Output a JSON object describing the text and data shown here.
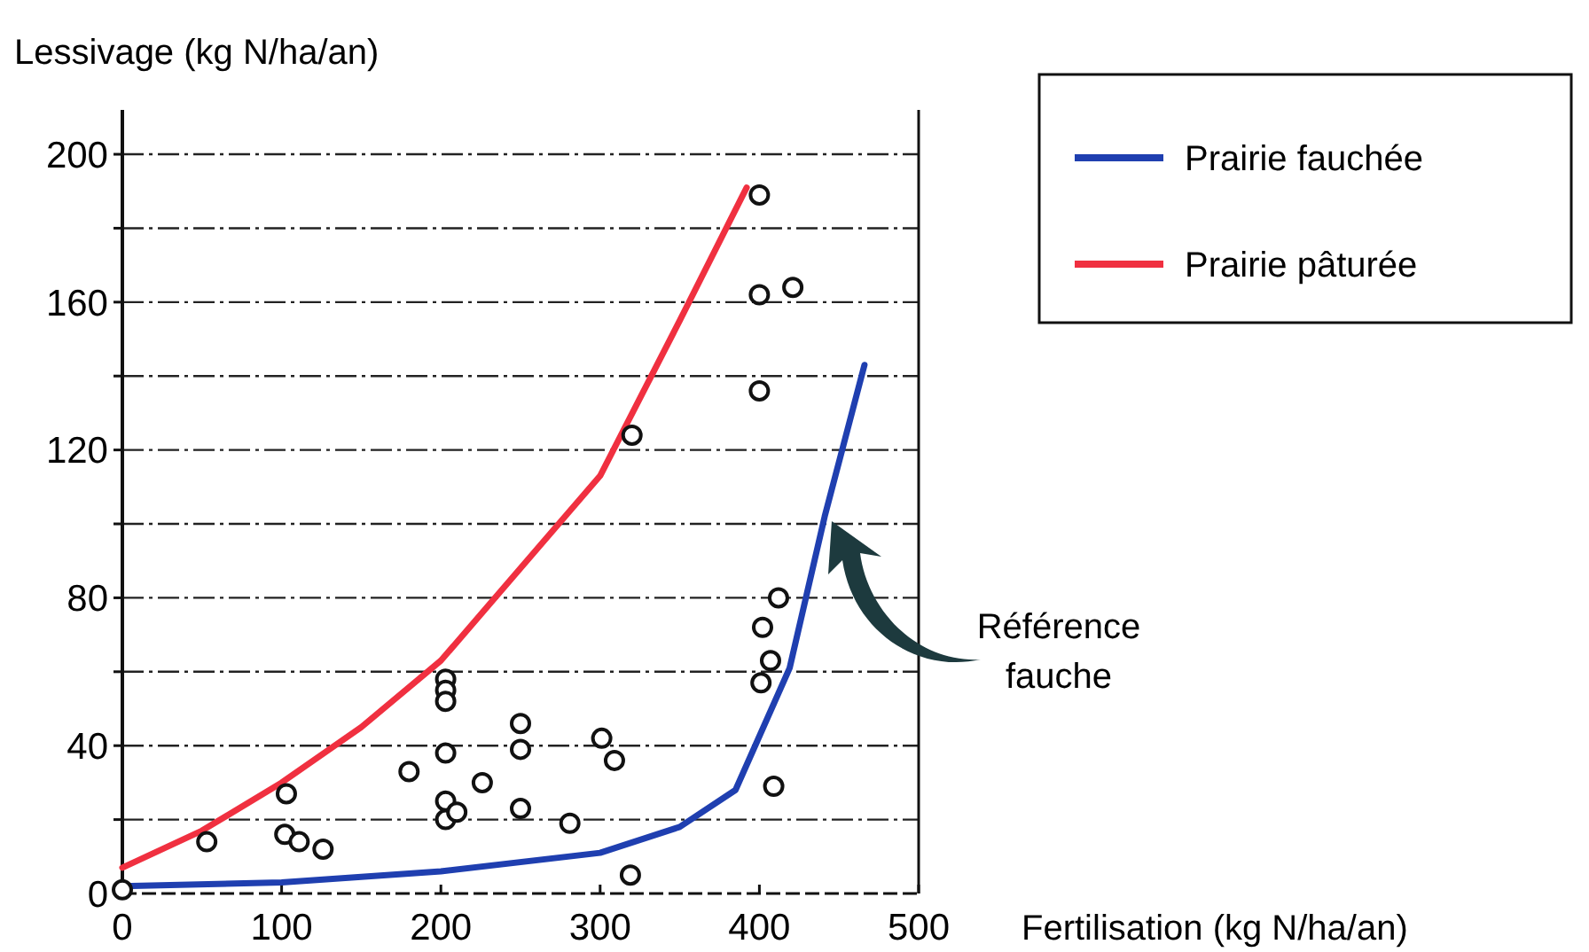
{
  "chart_data": {
    "type": "scatter",
    "xlabel": "Fertilisation (kg N/ha/an)",
    "ylabel": "Lessivage (kg N/ha/an)",
    "xlim": [
      0,
      500
    ],
    "ylim": [
      0,
      212
    ],
    "xticks": [
      0,
      100,
      200,
      300,
      400,
      500
    ],
    "yticks": [
      0,
      {
        "value": 20,
        "label": null
      },
      40,
      {
        "value": 60,
        "label": null
      },
      80,
      {
        "value": 100,
        "label": null
      },
      120,
      {
        "value": 140,
        "label": null
      },
      160,
      {
        "value": 180,
        "label": null
      },
      200
    ],
    "grid": "y",
    "legend": "right",
    "annotations": [
      "Référence fauche"
    ],
    "series": [
      {
        "type": "line",
        "name": "Prairie fauchée",
        "color": "#1f3fb0",
        "marker": "none",
        "x": [
          0,
          100,
          200,
          300,
          350,
          385,
          419,
          441,
          466
        ],
        "values": [
          2,
          3,
          6,
          11,
          18,
          28,
          61,
          102,
          143
        ]
      },
      {
        "type": "line",
        "name": "Prairie pâturée",
        "color": "#f03040",
        "marker": "none",
        "x": [
          0,
          50,
          100,
          150,
          200,
          250,
          300,
          350,
          392
        ],
        "values": [
          7,
          17,
          30,
          45,
          63,
          88,
          113,
          155,
          191
        ]
      },
      {
        "color": "#111111",
        "marker": "circle",
        "x": [
          0,
          53,
          103,
          102,
          111,
          126,
          180,
          203,
          203,
          203,
          203,
          203,
          203,
          210,
          226,
          250,
          250,
          250,
          281,
          301,
          309,
          319,
          320,
          400,
          400,
          421,
          400,
          412,
          402,
          407,
          401,
          409
        ],
        "values": [
          1,
          14,
          27,
          16,
          14,
          12,
          33,
          58,
          55,
          52,
          38,
          25,
          20,
          22,
          30,
          46,
          39,
          23,
          19,
          42,
          36,
          5,
          124,
          189,
          162,
          164,
          136,
          80,
          72,
          63,
          57,
          29
        ]
      }
    ]
  }
}
